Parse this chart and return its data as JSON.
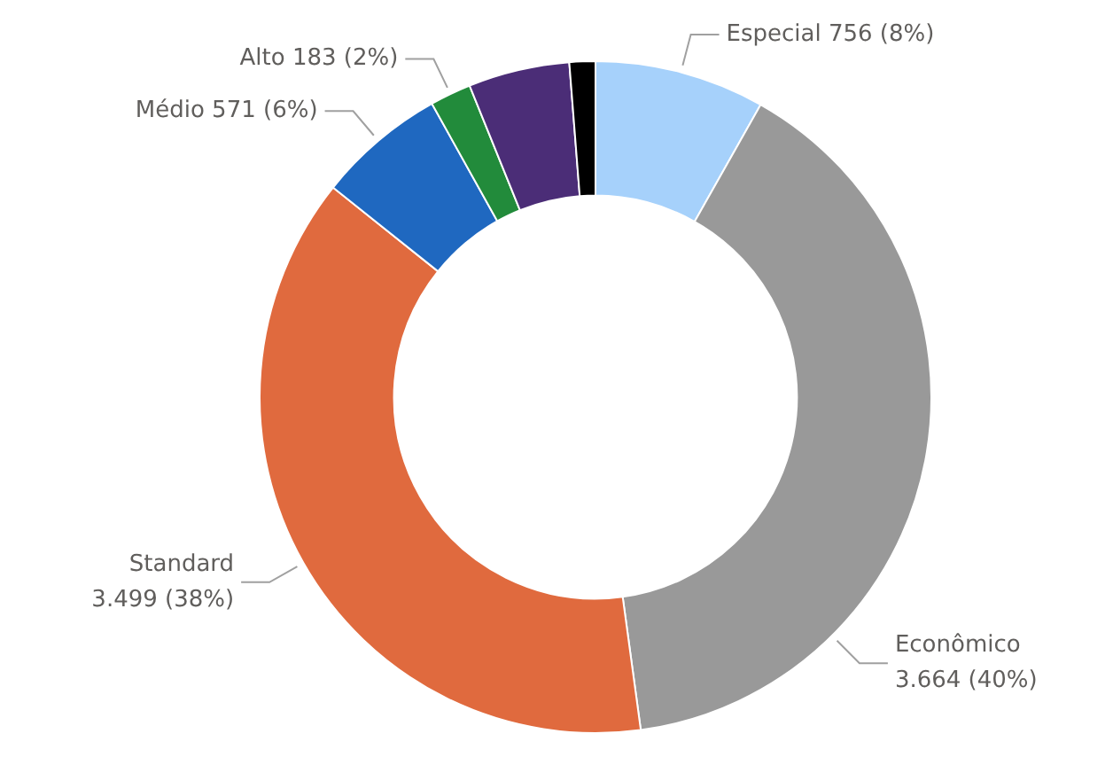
{
  "chart_data": {
    "type": "donut",
    "categories": [
      "Especial",
      "Econômico",
      "Standard",
      "Médio",
      "Alto",
      null,
      null
    ],
    "values": [
      756,
      3664,
      3499,
      571,
      183,
      450,
      115
    ],
    "value_labels": [
      "756 (8%)",
      "3.664 (40%)",
      "3.499 (38%)",
      "571 (6%)",
      "183 (2%)",
      null,
      null
    ],
    "colors": [
      "#a6d1fb",
      "#999999",
      "#e06a3e",
      "#1f68c0",
      "#228b3b",
      "#4b2d77",
      "#000000"
    ],
    "legend": false
  }
}
